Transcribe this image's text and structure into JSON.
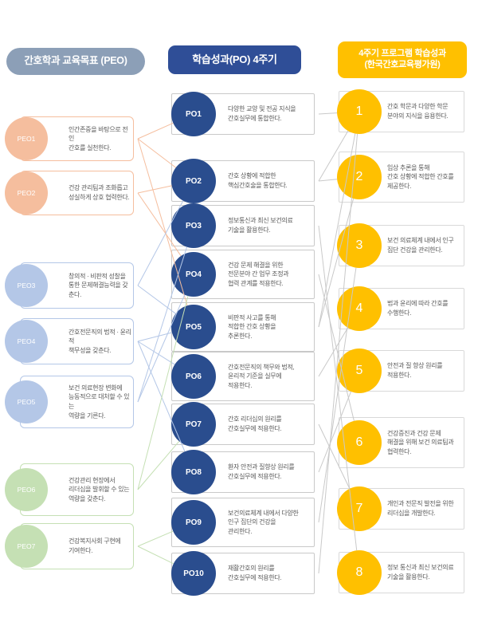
{
  "header": {
    "peo": "간호학과 교육목표 (PEO)",
    "po": "학습성과(PO) 4주기",
    "kabone_line1": "4주기 프로그램 학습성과",
    "kabone_line2": "(한국간호교육평가원)"
  },
  "colors": {
    "peo_header_bg": "#8C9FB7",
    "po_header_bg": "#2F4E97",
    "kabone_header_bg": "#FFC000",
    "po_circle": "#2A4D8E",
    "kabone_circle": "#FFC000",
    "groups": {
      "orange": "#F5BE9E",
      "blue": "#B4C7E7",
      "green": "#C5E0B4"
    },
    "po_box_border": "#C9C9C9",
    "kabone_box_border": "#D9D9D9",
    "link_gray": "#C9C9C9",
    "box_text": "#595959"
  },
  "columns": {
    "peo": {
      "items": [
        {
          "id": "PEO1",
          "label": "PEO1",
          "group": "orange",
          "text": "인간존중을 바탕으로 전인\n간호를 실천한다."
        },
        {
          "id": "PEO2",
          "label": "PEO2",
          "group": "orange",
          "text": "건강 관리팀과 조화롭고\n성실하게 상호 협력한다."
        },
        {
          "id": "PEO3",
          "label": "PEO3",
          "group": "blue",
          "text": "창의적 · 비판적 성찰을\n통한 문제해결능력을 갖춘다."
        },
        {
          "id": "PEO4",
          "label": "PEO4",
          "group": "blue",
          "text": "간호전문직의 법적 · 윤리적\n책무성을 갖춘다."
        },
        {
          "id": "PEO5",
          "label": "PEO5",
          "group": "blue",
          "text": "보건 의료현장 변화에\n능동적으로 대처할 수 있는\n역량을 기른다."
        },
        {
          "id": "PEO6",
          "label": "PEO6",
          "group": "green",
          "text": "건강관리 현장에서\n리더십을 발휘할 수 있는\n역량을 갖춘다."
        },
        {
          "id": "PEO7",
          "label": "PEO7",
          "group": "green",
          "text": "건강복지사회 구현에\n기여한다."
        }
      ]
    },
    "po": {
      "items": [
        {
          "id": "PO1",
          "label": "PO1",
          "text": "다양한 교양 및 전공 지식을\n간호실무에 통합한다."
        },
        {
          "id": "PO2",
          "label": "PO2",
          "text": "간호 상황에 적합한\n핵심간호술을 통합한다."
        },
        {
          "id": "PO3",
          "label": "PO3",
          "text": "정보통신과 최신 보건의료\n기술을 활용한다."
        },
        {
          "id": "PO4",
          "label": "PO4",
          "text": "건강 문제 해결을 위한\n전문분야 간 업무 조정과\n협력 관계를 적용한다."
        },
        {
          "id": "PO5",
          "label": "PO5",
          "text": "비판적 사고를 통해\n적합한 간호 상황을\n추론한다."
        },
        {
          "id": "PO6",
          "label": "PO6",
          "text": "간호전문직의 책무와 법적,\n윤리적 기준을 실무에\n적용한다."
        },
        {
          "id": "PO7",
          "label": "PO7",
          "text": "간호 리더십의 원리를\n간호실무에 적용한다."
        },
        {
          "id": "PO8",
          "label": "PO8",
          "text": "환자 안전과 질향상 원리를\n간호실무에 적용한다."
        },
        {
          "id": "PO9",
          "label": "PO9",
          "text": "보건의료체계 내에서 다양한\n인구 집단의 건강을\n관리한다."
        },
        {
          "id": "PO10",
          "label": "PO10",
          "text": "재활간호의 원리를\n간호실무에 적용한다."
        }
      ]
    },
    "kabone": {
      "items": [
        {
          "id": "K1",
          "label": "1",
          "text": "간호 학문과 다양한 학문\n분야의 지식을 융용한다."
        },
        {
          "id": "K2",
          "label": "2",
          "text": "임상 추론을 통해\n간호 상황에 적합한 간호를\n제공한다."
        },
        {
          "id": "K3",
          "label": "3",
          "text": "보건 의료체계 내에서 인구\n집단 건강을 관리한다."
        },
        {
          "id": "K4",
          "label": "4",
          "text": "법과 윤리에 따라 간호를\n수행한다."
        },
        {
          "id": "K5",
          "label": "5",
          "text": "안전과 질 향상 원리를\n적용한다."
        },
        {
          "id": "K6",
          "label": "6",
          "text": "건강증진과 건강 문제\n해결을 위해 보건 의료팀과\n협력한다."
        },
        {
          "id": "K7",
          "label": "7",
          "text": "개인과 전문직 발전을 위한\n리더십을 개발한다."
        },
        {
          "id": "K8",
          "label": "8",
          "text": "정보 통신과 최신 보건의료\n기술을 활용한다."
        }
      ]
    }
  },
  "connections": {
    "peo_to_po": [
      [
        "PEO1",
        "PO1"
      ],
      [
        "PEO1",
        "PO2"
      ],
      [
        "PEO1",
        "PO5"
      ],
      [
        "PEO2",
        "PO2"
      ],
      [
        "PEO2",
        "PO4"
      ],
      [
        "PEO3",
        "PO2"
      ],
      [
        "PEO3",
        "PO5"
      ],
      [
        "PEO4",
        "PO5"
      ],
      [
        "PEO4",
        "PO6"
      ],
      [
        "PEO4",
        "PO8"
      ],
      [
        "PEO5",
        "PO3"
      ],
      [
        "PEO5",
        "PO4"
      ],
      [
        "PEO6",
        "PO4"
      ],
      [
        "PEO6",
        "PO7"
      ],
      [
        "PEO7",
        "PO9"
      ],
      [
        "PEO7",
        "PO10"
      ]
    ],
    "po_to_kabone": [
      [
        "PO1",
        "K1"
      ],
      [
        "PO2",
        "K1"
      ],
      [
        "PO2",
        "K2"
      ],
      [
        "PO3",
        "K8"
      ],
      [
        "PO4",
        "K6"
      ],
      [
        "PO5",
        "K1"
      ],
      [
        "PO5",
        "K2"
      ],
      [
        "PO6",
        "K4"
      ],
      [
        "PO7",
        "K7"
      ],
      [
        "PO8",
        "K5"
      ],
      [
        "PO9",
        "K3"
      ],
      [
        "PO10",
        "K1"
      ]
    ]
  }
}
